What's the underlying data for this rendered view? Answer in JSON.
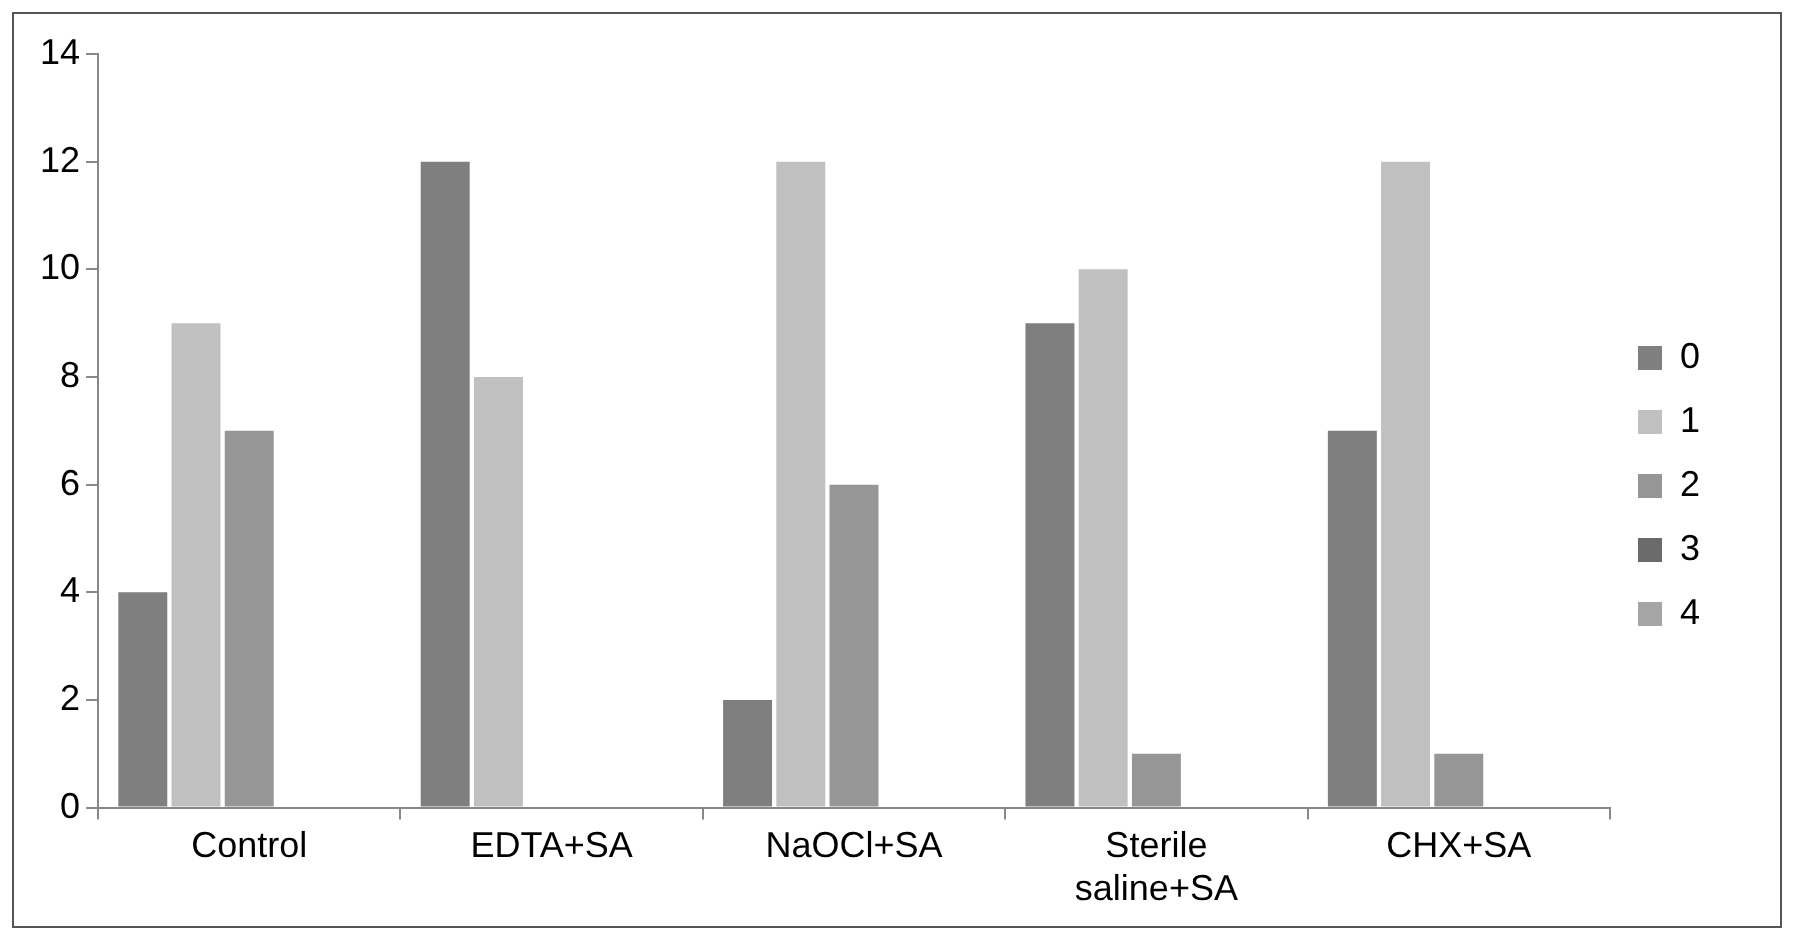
{
  "chart_data": {
    "type": "bar",
    "categories": [
      "Control",
      "EDTA+SA",
      "NaOCl+SA",
      "Sterile saline+SA",
      "CHX+SA"
    ],
    "series": [
      {
        "name": "0",
        "color": "#7f7f7f",
        "values": [
          4,
          12,
          2,
          9,
          7
        ]
      },
      {
        "name": "1",
        "color": "#c0c0c0",
        "values": [
          9,
          8,
          12,
          10,
          12
        ]
      },
      {
        "name": "2",
        "color": "#969696",
        "values": [
          7,
          0,
          6,
          1,
          1
        ]
      },
      {
        "name": "3",
        "color": "#6b6b6b",
        "values": [
          0,
          0,
          0,
          0,
          0
        ]
      },
      {
        "name": "4",
        "color": "#a5a5a5",
        "values": [
          0,
          0,
          0,
          0,
          0
        ]
      }
    ],
    "ylim": [
      0,
      14
    ],
    "yticks": [
      0,
      2,
      4,
      6,
      8,
      10,
      12,
      14
    ],
    "grid": false,
    "legend": "right"
  }
}
